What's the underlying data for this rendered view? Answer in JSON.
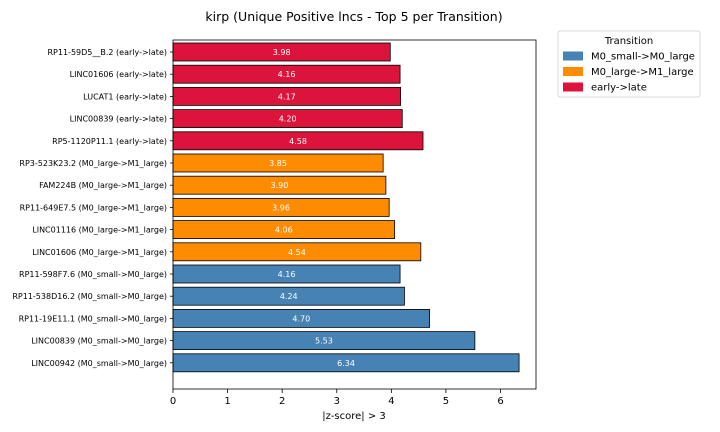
{
  "chart_data": {
    "type": "bar",
    "orientation": "horizontal",
    "title": "kirp (Unique Positive lncs - Top 5 per Transition)",
    "xlabel": "|z-score| > 3",
    "ylabel": "",
    "xlim": [
      0,
      6.65
    ],
    "xticks": [
      0,
      1,
      2,
      3,
      4,
      5,
      6
    ],
    "grid": false,
    "legend": {
      "title": "Transition",
      "placement": "outside-top-right",
      "entries": [
        {
          "name": "M0_small->M0_large",
          "color": "#4682b4"
        },
        {
          "name": "M0_large->M1_large",
          "color": "#ff8c00"
        },
        {
          "name": "early->late",
          "color": "#dc143c"
        }
      ]
    },
    "bars": [
      {
        "label": "RP11-59D5__B.2 (early->late)",
        "value": 3.98,
        "value_label": "3.98",
        "group": 2
      },
      {
        "label": "LINC01606 (early->late)",
        "value": 4.16,
        "value_label": "4.16",
        "group": 2
      },
      {
        "label": "LUCAT1 (early->late)",
        "value": 4.17,
        "value_label": "4.17",
        "group": 2
      },
      {
        "label": "LINC00839 (early->late)",
        "value": 4.2,
        "value_label": "4.20",
        "group": 2
      },
      {
        "label": "RP5-1120P11.1 (early->late)",
        "value": 4.58,
        "value_label": "4.58",
        "group": 2
      },
      {
        "label": "RP3-523K23.2 (M0_large->M1_large)",
        "value": 3.85,
        "value_label": "3.85",
        "group": 1
      },
      {
        "label": "FAM224B (M0_large->M1_large)",
        "value": 3.9,
        "value_label": "3.90",
        "group": 1
      },
      {
        "label": "RP11-649E7.5 (M0_large->M1_large)",
        "value": 3.96,
        "value_label": "3.96",
        "group": 1
      },
      {
        "label": "LINC01116 (M0_large->M1_large)",
        "value": 4.06,
        "value_label": "4.06",
        "group": 1
      },
      {
        "label": "LINC01606 (M0_large->M1_large)",
        "value": 4.54,
        "value_label": "4.54",
        "group": 1
      },
      {
        "label": "RP11-598F7.6 (M0_small->M0_large)",
        "value": 4.16,
        "value_label": "4.16",
        "group": 0
      },
      {
        "label": "RP11-538D16.2 (M0_small->M0_large)",
        "value": 4.24,
        "value_label": "4.24",
        "group": 0
      },
      {
        "label": "RP11-19E11.1 (M0_small->M0_large)",
        "value": 4.7,
        "value_label": "4.70",
        "group": 0
      },
      {
        "label": "LINC00839 (M0_small->M0_large)",
        "value": 5.53,
        "value_label": "5.53",
        "group": 0
      },
      {
        "label": "LINC00942 (M0_small->M0_large)",
        "value": 6.34,
        "value_label": "6.34",
        "group": 0
      }
    ]
  }
}
